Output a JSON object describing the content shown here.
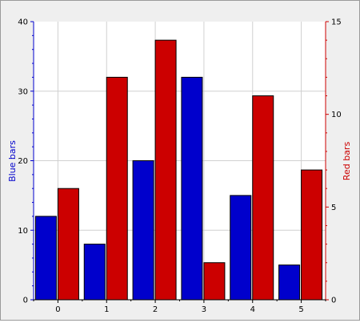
{
  "chart_data": {
    "type": "bar",
    "categories": [
      "0",
      "1",
      "2",
      "3",
      "4",
      "5"
    ],
    "series": [
      {
        "name": "Blue bars",
        "axis": "left",
        "color": "#0000cc",
        "values": [
          12,
          8,
          20,
          32,
          15,
          5
        ]
      },
      {
        "name": "Red bars",
        "axis": "right",
        "color": "#cc0000",
        "values": [
          6,
          12,
          14,
          2,
          11,
          7
        ]
      }
    ],
    "y_left": {
      "label": "Blue bars",
      "label_color": "#0000cc",
      "lim": [
        0,
        40
      ],
      "ticks": [
        0,
        10,
        20,
        30,
        40
      ]
    },
    "y_right": {
      "label": "Red bars",
      "label_color": "#cc0000",
      "lim": [
        0,
        15
      ],
      "ticks": [
        0,
        5,
        10,
        15
      ]
    },
    "xlabel": "",
    "title": "",
    "grid": true,
    "legend": "none"
  }
}
